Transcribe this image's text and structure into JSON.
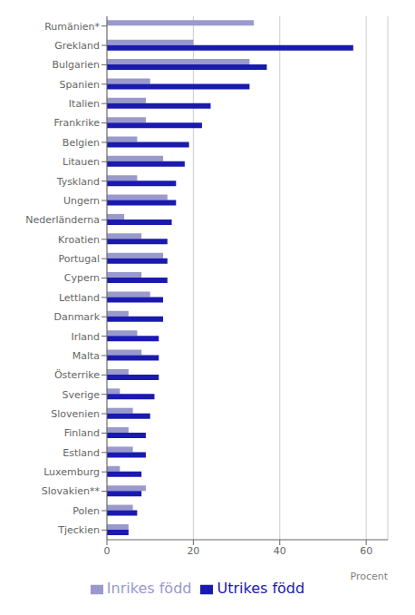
{
  "chart_data": {
    "type": "bar",
    "orientation": "horizontal",
    "xlabel": "Procent",
    "categories": [
      "Rumänien*",
      "Grekland",
      "Bulgarien",
      "Spanien",
      "Italien",
      "Frankrike",
      "Belgien",
      "Litauen",
      "Tyskland",
      "Ungern",
      "Nederländerna",
      "Kroatien",
      "Portugal",
      "Cypern",
      "Lettland",
      "Danmark",
      "Irland",
      "Malta",
      "Österrike",
      "Sverige",
      "Slovenien",
      "Finland",
      "Estland",
      "Luxemburg",
      "Slovakien**",
      "Polen",
      "Tjeckien"
    ],
    "series": [
      {
        "name": "Inrikes född",
        "color": "#9999cc",
        "values": [
          34,
          20,
          33,
          10,
          9,
          9,
          7,
          13,
          7,
          14,
          4,
          8,
          13,
          8,
          10,
          5,
          7,
          8,
          5,
          3,
          6,
          5,
          6,
          3,
          9,
          6,
          5
        ]
      },
      {
        "name": "Utrikes född",
        "color": "#1a1ab0",
        "values": [
          0,
          57,
          37,
          33,
          24,
          22,
          19,
          18,
          16,
          16,
          15,
          14,
          14,
          14,
          13,
          13,
          12,
          12,
          12,
          11,
          10,
          9,
          9,
          8,
          8,
          7,
          5
        ]
      }
    ],
    "xlim": [
      0,
      65
    ],
    "xticks": [
      0,
      20,
      40,
      60
    ],
    "grid": true,
    "legend": "bottom"
  }
}
